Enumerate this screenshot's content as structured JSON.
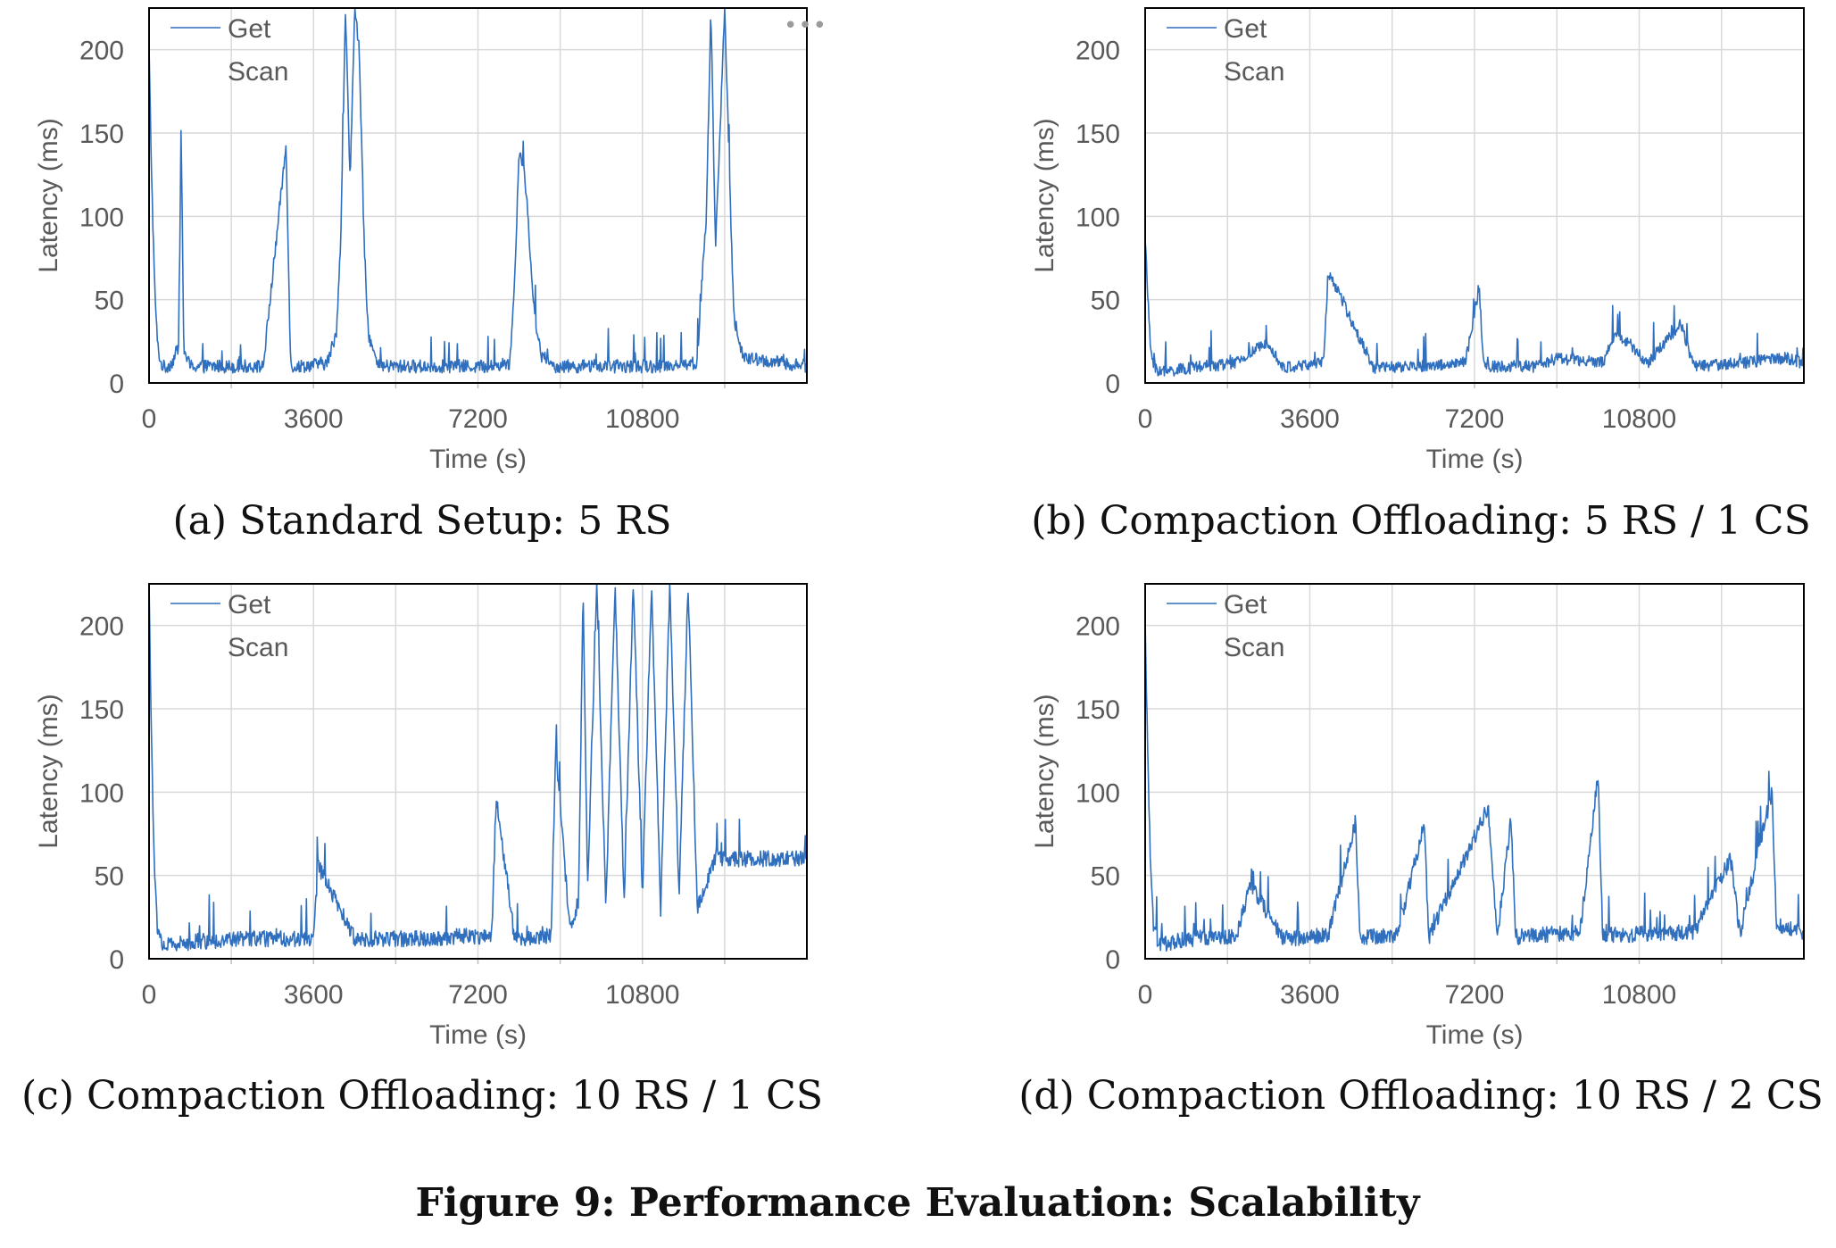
{
  "figure_title": "Figure 9: Performance Evaluation: Scalability",
  "more_icon": "ellipsis-icon",
  "colors": {
    "series": "#2f6fbe",
    "grid": "#d9d9d9",
    "frame": "#000000",
    "tick_text": "#595959"
  },
  "chart_data": [
    {
      "type": "line",
      "caption": "(a) Standard Setup: 5 RS",
      "xlabel": "Time (s)",
      "ylabel": "Latency (ms)",
      "xlim": [
        0,
        14400
      ],
      "ylim": [
        0,
        225
      ],
      "xticks": [
        0,
        3600,
        7200,
        10800
      ],
      "yticks": [
        0,
        50,
        100,
        150,
        200
      ],
      "grid": true,
      "legend": "top-left",
      "series": [
        {
          "name": "Get",
          "baseline": 10,
          "x": [
            0,
            60,
            120,
            180,
            250,
            350,
            500,
            650,
            700,
            760,
            900,
            1500,
            2500,
            3000,
            3100,
            3300,
            3900,
            4100,
            4200,
            4300,
            4400,
            4500,
            4600,
            4700,
            4800,
            5000,
            6000,
            6300,
            7500,
            7900,
            8000,
            8100,
            8200,
            8300,
            8400,
            8500,
            8600,
            8800,
            9000,
            10000,
            11000,
            12000,
            12100,
            12200,
            12300,
            12400,
            12600,
            12800,
            13000,
            14400
          ],
          "y": [
            200,
            120,
            60,
            25,
            12,
            9,
            12,
            22,
            155,
            20,
            10,
            10,
            10,
            143,
            10,
            10,
            12,
            30,
            90,
            225,
            120,
            225,
            200,
            90,
            30,
            10,
            10,
            10,
            10,
            12,
            60,
            140,
            130,
            100,
            50,
            30,
            15,
            10,
            10,
            10,
            10,
            12,
            60,
            100,
            225,
            80,
            225,
            40,
            15,
            10
          ]
        },
        {
          "name": "Scan",
          "x": [],
          "y": []
        }
      ]
    },
    {
      "type": "line",
      "caption": "(b) Compaction Offloading: 5 RS / 1 CS",
      "xlabel": "Time (s)",
      "ylabel": "Latency (ms)",
      "xlim": [
        0,
        14400
      ],
      "ylim": [
        0,
        225
      ],
      "xticks": [
        0,
        3600,
        7200,
        10800
      ],
      "yticks": [
        0,
        50,
        100,
        150,
        200
      ],
      "grid": true,
      "legend": "top-left",
      "series": [
        {
          "name": "Get",
          "baseline": 9,
          "x": [
            0,
            60,
            120,
            200,
            300,
            500,
            1000,
            2000,
            2700,
            3000,
            3900,
            4000,
            5000,
            6000,
            7000,
            7300,
            7400,
            8500,
            9000,
            10000,
            10300,
            11000,
            11700,
            12000,
            13000,
            14000,
            14400
          ],
          "y": [
            88,
            50,
            20,
            10,
            7,
            7,
            9,
            12,
            25,
            9,
            12,
            67,
            9,
            10,
            12,
            57,
            10,
            10,
            15,
            12,
            30,
            12,
            36,
            10,
            12,
            15,
            12
          ]
        },
        {
          "name": "Scan",
          "x": [],
          "y": []
        }
      ]
    },
    {
      "type": "line",
      "caption": "(c) Compaction Offloading: 10 RS / 1 CS",
      "xlabel": "Time (s)",
      "ylabel": "Latency (ms)",
      "xlim": [
        0,
        14400
      ],
      "ylim": [
        0,
        225
      ],
      "xticks": [
        0,
        3600,
        7200,
        10800
      ],
      "yticks": [
        0,
        50,
        100,
        150,
        200
      ],
      "grid": true,
      "legend": "top-left",
      "series": [
        {
          "name": "Get",
          "baseline": 12,
          "x": [
            0,
            60,
            120,
            180,
            300,
            400,
            1000,
            2000,
            3000,
            3600,
            3700,
            4500,
            6000,
            7000,
            7500,
            7600,
            8000,
            8800,
            8900,
            9200,
            9400,
            9500,
            9600,
            9800,
            10000,
            10200,
            10400,
            10600,
            10800,
            11000,
            11200,
            11400,
            11600,
            11800,
            12000,
            12400
          ],
          "y": [
            225,
            120,
            50,
            20,
            8,
            8,
            10,
            12,
            12,
            12,
            56,
            12,
            12,
            14,
            13,
            97,
            12,
            14,
            127,
            20,
            30,
            225,
            40,
            225,
            30,
            225,
            35,
            225,
            40,
            225,
            30,
            225,
            35,
            225,
            30,
            60
          ]
        },
        {
          "name": "Scan",
          "x": [],
          "y": []
        }
      ]
    },
    {
      "type": "line",
      "caption": "(d) Compaction Offloading: 10 RS / 2 CS",
      "xlabel": "Time (s)",
      "ylabel": "Latency (ms)",
      "xlim": [
        0,
        14400
      ],
      "ylim": [
        0,
        225
      ],
      "xticks": [
        0,
        3600,
        7200,
        10800
      ],
      "yticks": [
        0,
        50,
        100,
        150,
        200
      ],
      "grid": true,
      "legend": "top-left",
      "series": [
        {
          "name": "Get",
          "baseline": 12,
          "x": [
            0,
            60,
            120,
            180,
            300,
            400,
            1000,
            2000,
            2300,
            3000,
            4000,
            4600,
            4700,
            5500,
            6100,
            6200,
            7500,
            7700,
            8000,
            8100,
            8500,
            9500,
            9900,
            10000,
            11000,
            12000,
            12800,
            13000,
            13700,
            13800,
            14400
          ],
          "y": [
            200,
            120,
            50,
            20,
            8,
            9,
            12,
            14,
            45,
            12,
            14,
            82,
            13,
            14,
            80,
            13,
            91,
            13,
            85,
            13,
            15,
            14,
            111,
            14,
            15,
            16,
            60,
            15,
            100,
            20,
            15
          ]
        },
        {
          "name": "Scan",
          "x": [],
          "y": []
        }
      ]
    }
  ]
}
